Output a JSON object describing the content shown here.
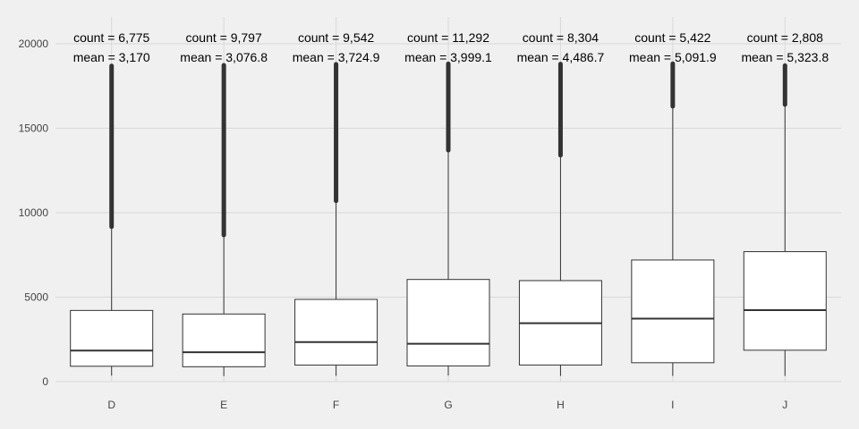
{
  "chart_data": {
    "type": "boxplot",
    "title": "",
    "xlabel": "",
    "ylabel": "",
    "ylim": [
      0,
      20000
    ],
    "yticks": [
      0,
      5000,
      10000,
      15000,
      20000
    ],
    "grid": true,
    "colors": {
      "background": "#f0f0f0",
      "grid": "#d9d9d9",
      "box_fill": "#ffffff",
      "box_line": "#333333"
    },
    "categories": [
      "D",
      "E",
      "F",
      "G",
      "H",
      "I",
      "J"
    ],
    "boxes": [
      {
        "category": "D",
        "q1": 911,
        "median": 1838,
        "q3": 4214,
        "whisker_low": 357,
        "whisker_high": 9170,
        "outlier_min": 9170,
        "outlier_max": 18693
      },
      {
        "category": "E",
        "q1": 882,
        "median": 1739,
        "q3": 4003,
        "whisker_low": 326,
        "whisker_high": 8680,
        "outlier_min": 8680,
        "outlier_max": 18731
      },
      {
        "category": "F",
        "q1": 982,
        "median": 2344,
        "q3": 4868,
        "whisker_low": 342,
        "whisker_high": 10700,
        "outlier_min": 10700,
        "outlier_max": 18791
      },
      {
        "category": "G",
        "q1": 931,
        "median": 2242,
        "q3": 6048,
        "whisker_low": 354,
        "whisker_high": 13700,
        "outlier_min": 13700,
        "outlier_max": 18818
      },
      {
        "category": "H",
        "q1": 984,
        "median": 3460,
        "q3": 5980,
        "whisker_low": 337,
        "whisker_high": 13400,
        "outlier_min": 13400,
        "outlier_max": 18803
      },
      {
        "category": "I",
        "q1": 1120,
        "median": 3730,
        "q3": 7200,
        "whisker_low": 334,
        "whisker_high": 16300,
        "outlier_min": 16300,
        "outlier_max": 18823
      },
      {
        "category": "J",
        "q1": 1860,
        "median": 4234,
        "q3": 7695,
        "whisker_low": 335,
        "whisker_high": 16400,
        "outlier_min": 16400,
        "outlier_max": 18710
      }
    ],
    "annotations": [
      {
        "category": "D",
        "count": "count = 6,775",
        "mean": "mean = 3,170"
      },
      {
        "category": "E",
        "count": "count = 9,797",
        "mean": "mean = 3,076.8"
      },
      {
        "category": "F",
        "count": "count = 9,542",
        "mean": "mean = 3,724.9"
      },
      {
        "category": "G",
        "count": "count = 11,292",
        "mean": "mean = 3,999.1"
      },
      {
        "category": "H",
        "count": "count = 8,304",
        "mean": "mean = 4,486.7"
      },
      {
        "category": "I",
        "count": "count = 5,422",
        "mean": "mean = 5,091.9"
      },
      {
        "category": "J",
        "count": "count = 2,808",
        "mean": "mean = 5,323.8"
      }
    ]
  }
}
